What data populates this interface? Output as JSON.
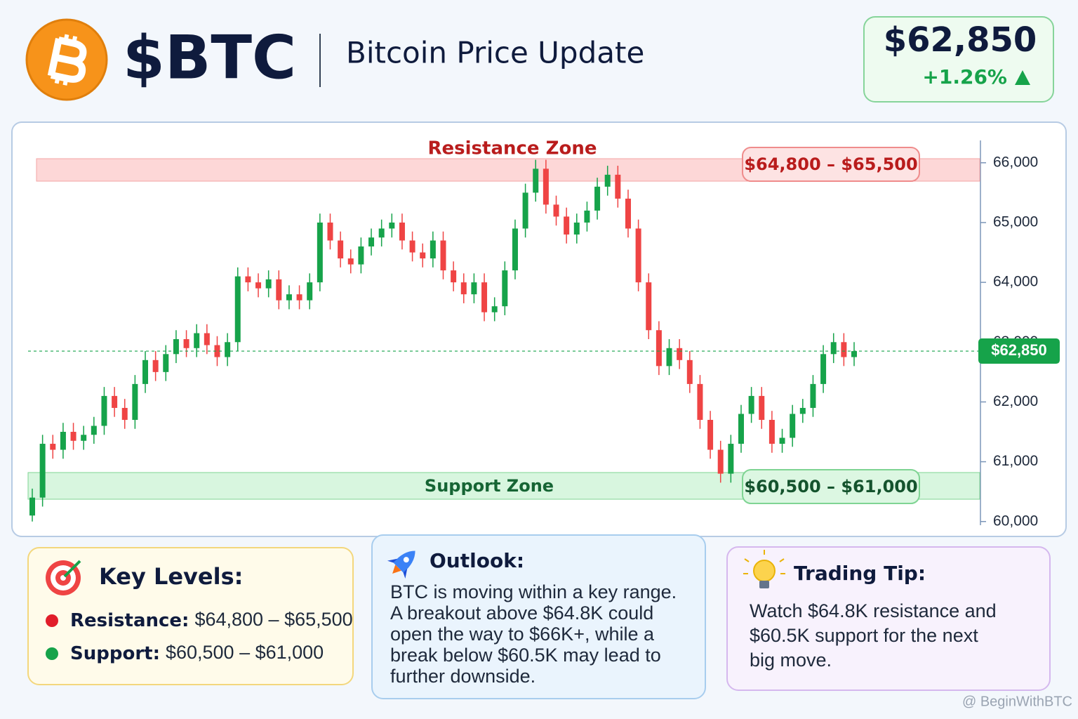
{
  "header": {
    "ticker": "$BTC",
    "title": "Bitcoin Price Update",
    "price": "$62,850",
    "change": "+1.26%"
  },
  "chart_data": {
    "type": "candlestick",
    "ylim": [
      59950,
      66350
    ],
    "yticks": [
      {
        "value": 60000,
        "label": "60,000"
      },
      {
        "value": 61000,
        "label": "61,000"
      },
      {
        "value": 62000,
        "label": "62,000"
      },
      {
        "value": 63000,
        "label": "63,000"
      },
      {
        "value": 64000,
        "label": "64,000"
      },
      {
        "value": 65000,
        "label": "65,000"
      },
      {
        "value": 66000,
        "label": "66,000"
      }
    ],
    "up_color": "#16a34a",
    "down_color": "#ef4444",
    "open": [
      60100,
      60400,
      61300,
      61200,
      61500,
      61350,
      61450,
      61600,
      62100,
      61900,
      61700,
      62300,
      62700,
      62500,
      62800,
      63050,
      62900,
      63150,
      62950,
      62750,
      63000,
      64100,
      64000,
      63900,
      64050,
      63700,
      63800,
      63700,
      64000,
      65000,
      64700,
      64400,
      64300,
      64600,
      64750,
      64900,
      65000,
      64700,
      64500,
      64400,
      64700,
      64200,
      64000,
      63800,
      64000,
      63500,
      63600,
      64200,
      64900,
      65500,
      65900,
      65300,
      65100,
      64800,
      65000,
      65200,
      65600,
      65800,
      65400,
      64900,
      64000,
      63200,
      62600,
      62900,
      62700,
      62300,
      61700,
      61200,
      60800,
      61300,
      61800,
      62100,
      61700,
      61300,
      61400,
      61800,
      61900,
      62300,
      62800,
      63000,
      62750
    ],
    "high": [
      60550,
      61450,
      61450,
      61650,
      61650,
      61600,
      61750,
      62250,
      62250,
      62050,
      62450,
      62850,
      62850,
      62950,
      63200,
      63200,
      63300,
      63300,
      63100,
      63150,
      64250,
      64250,
      64150,
      64200,
      64200,
      63950,
      63950,
      64150,
      65150,
      65150,
      64850,
      64550,
      64750,
      64900,
      65050,
      65150,
      65150,
      64850,
      64650,
      64850,
      64850,
      64350,
      64150,
      64150,
      64150,
      63750,
      64350,
      65050,
      65650,
      66050,
      66050,
      65450,
      65250,
      65150,
      65350,
      65750,
      65950,
      65950,
      65550,
      65050,
      64150,
      63350,
      63050,
      63050,
      62850,
      62450,
      61850,
      61350,
      61450,
      61950,
      62250,
      62250,
      61850,
      61550,
      61950,
      62050,
      62450,
      62950,
      63150,
      63150,
      63000
    ],
    "low": [
      60000,
      60250,
      61050,
      61050,
      61200,
      61200,
      61300,
      61450,
      61750,
      61550,
      61550,
      62150,
      62350,
      62350,
      62650,
      62750,
      62750,
      62800,
      62600,
      62600,
      62850,
      63850,
      63750,
      63750,
      63550,
      63550,
      63550,
      63550,
      63850,
      64550,
      64250,
      64150,
      64150,
      64450,
      64600,
      64750,
      64550,
      64350,
      64250,
      64250,
      64050,
      63850,
      63650,
      63650,
      63350,
      63350,
      63450,
      64050,
      64750,
      65350,
      65150,
      64950,
      64650,
      64650,
      64850,
      65050,
      65450,
      65250,
      64750,
      63850,
      63050,
      62450,
      62450,
      62550,
      62150,
      61550,
      61050,
      60650,
      60650,
      61150,
      61650,
      61550,
      61150,
      61150,
      61250,
      61650,
      61750,
      62150,
      62650,
      62600,
      62600
    ],
    "close": [
      60400,
      61300,
      61200,
      61500,
      61350,
      61450,
      61600,
      62100,
      61900,
      61700,
      62300,
      62700,
      62500,
      62800,
      63050,
      62900,
      63150,
      62950,
      62750,
      63000,
      64100,
      64000,
      63900,
      64050,
      63700,
      63800,
      63700,
      64000,
      65000,
      64700,
      64400,
      64300,
      64600,
      64750,
      64900,
      65000,
      64700,
      64500,
      64400,
      64700,
      64200,
      64000,
      63800,
      64000,
      63500,
      63600,
      64200,
      64900,
      65500,
      65900,
      65300,
      65100,
      64800,
      65000,
      65200,
      65600,
      65800,
      65400,
      64900,
      64000,
      63200,
      62600,
      62900,
      62700,
      62300,
      61700,
      61200,
      60800,
      61300,
      61800,
      62100,
      61700,
      61300,
      61400,
      61800,
      61900,
      62300,
      62800,
      63000,
      62750,
      62850
    ],
    "resistance_zone": "Resistance Zone",
    "resistance_range": "$64,800 – $65,500",
    "support_zone": "Support Zone",
    "support_range": "$60,500 – $61,000",
    "current_price": 62850,
    "current_price_label": "$62,850"
  },
  "key_levels": {
    "title": "Key Levels:",
    "items": [
      {
        "label": "Resistance:",
        "value": "$64,800 – $65,500"
      },
      {
        "label": "Support:",
        "value": "$60,500 – $61,000"
      }
    ]
  },
  "outlook": {
    "title": "Outlook:",
    "lines": [
      "BTC is moving within a key range.",
      "A breakout above $64.8K could",
      "open the way to $66K+, while a",
      "break below $60.5K may lead to",
      "further downside."
    ]
  },
  "trading_tip": {
    "title": "Trading Tip:",
    "lines": [
      "Watch $64.8K resistance and",
      "$60.5K support for the next",
      "big move."
    ]
  },
  "watermark": "@ BeginWithBTC"
}
